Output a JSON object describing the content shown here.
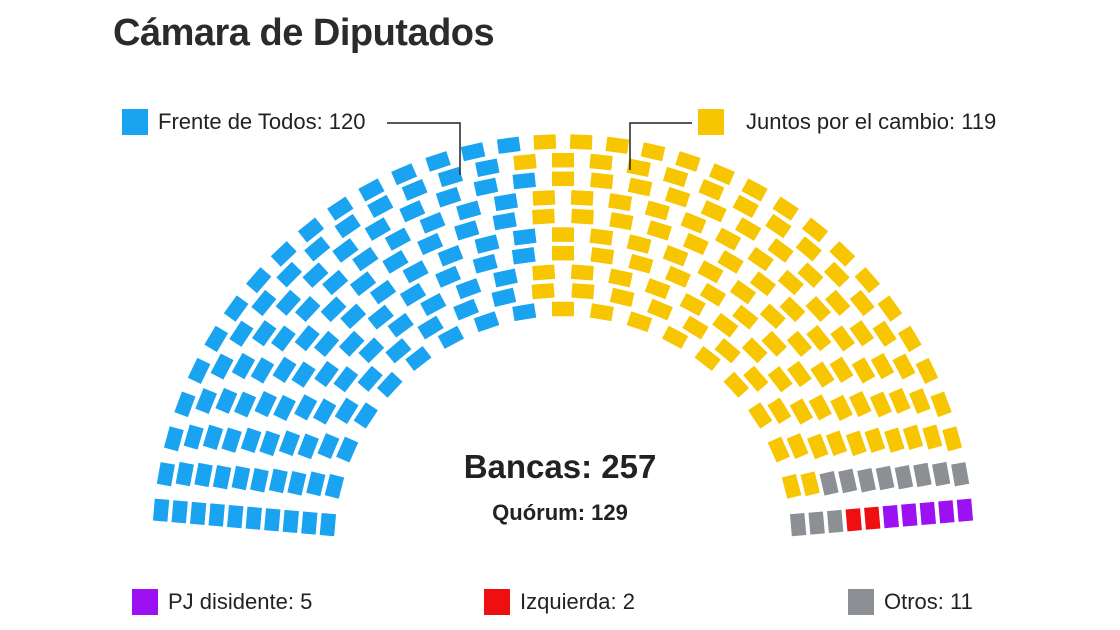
{
  "title": "Cámara de Diputados",
  "chart_data": {
    "type": "parliament",
    "total_seats": 257,
    "quorum": 129,
    "totals_text": {
      "seats": "Bancas: 257",
      "quorum": "Quórum: 129"
    },
    "parties": [
      {
        "name": "Frente de Todos",
        "seats": 120,
        "color": "#1aa3f0",
        "label": "Frente de Todos: 120"
      },
      {
        "name": "Juntos por el cambio",
        "seats": 119,
        "color": "#f7c600",
        "label": "Juntos por el cambio: 119"
      },
      {
        "name": "Otros",
        "seats": 11,
        "color": "#8c8f93",
        "label": "Otros: 11"
      },
      {
        "name": "Izquierda",
        "seats": 2,
        "color": "#ee1010",
        "label": "Izquierda: 2"
      },
      {
        "name": "PJ disidente",
        "seats": 5,
        "color": "#9b11f2",
        "label": "PJ disidente: 5"
      }
    ]
  }
}
